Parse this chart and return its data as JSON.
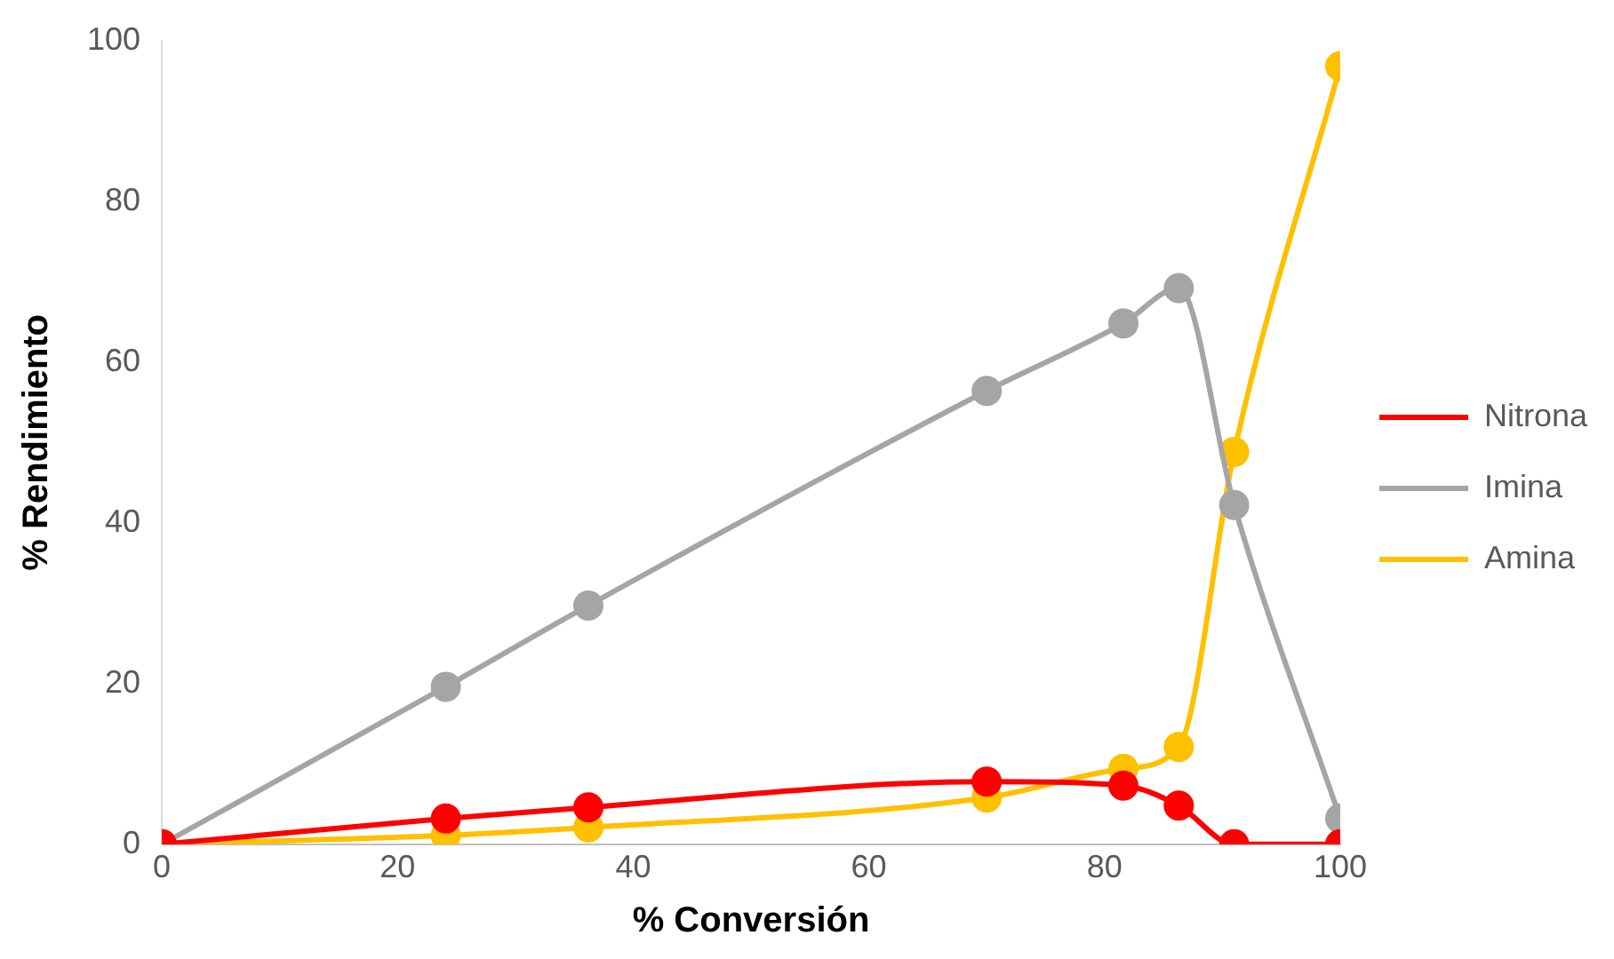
{
  "chart_data": {
    "type": "line",
    "xlabel": "% Conversión",
    "ylabel": "% Rendimiento",
    "x": [
      0,
      24.1,
      36.2,
      70,
      81.6,
      86.3,
      91,
      100
    ],
    "series": [
      {
        "name": "Nitrona",
        "color": "#ff0000",
        "values": [
          0,
          3.2,
          4.6,
          7.8,
          7.3,
          4.8,
          0,
          0
        ]
      },
      {
        "name": "Imina",
        "color": "#a5a5a5",
        "values": [
          0,
          19.6,
          29.7,
          56.4,
          64.8,
          69.2,
          42.2,
          3.2
        ]
      },
      {
        "name": "Amina",
        "color": "#ffc000",
        "values": [
          0,
          1.1,
          2.1,
          5.8,
          9.4,
          12.1,
          48.8,
          96.8
        ]
      }
    ],
    "xlim": [
      0,
      100
    ],
    "xticks": [
      0,
      20,
      40,
      60,
      80,
      100
    ],
    "ylim": [
      0,
      100
    ],
    "yticks": [
      0,
      20,
      40,
      60,
      80,
      100
    ],
    "grid": false,
    "legend": "right",
    "marker": "circle",
    "line_style": "solid"
  }
}
